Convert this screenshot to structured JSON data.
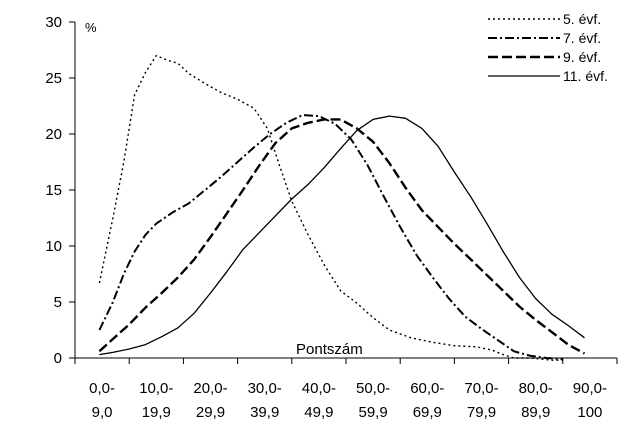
{
  "chart_data": {
    "type": "line",
    "ylabel_unit": "%",
    "xlabel": "Pontszám",
    "ylim": [
      0,
      30
    ],
    "yticks": [
      0,
      5,
      10,
      15,
      20,
      25,
      30
    ],
    "categories": [
      {
        "line1": "0,0-",
        "line2": "9,0"
      },
      {
        "line1": "10,0-",
        "line2": "19,9"
      },
      {
        "line1": "20,0-",
        "line2": "29,9"
      },
      {
        "line1": "30,0-",
        "line2": "39,9"
      },
      {
        "line1": "40,0-",
        "line2": "49,9"
      },
      {
        "line1": "50,0-",
        "line2": "59,9"
      },
      {
        "line1": "60,0-",
        "line2": "69,9"
      },
      {
        "line1": "70,0-",
        "line2": "79,9"
      },
      {
        "line1": "80,0-",
        "line2": "89,9"
      },
      {
        "line1": "90,0-",
        "line2": "100"
      }
    ],
    "x_range": [
      0,
      100
    ],
    "legend_position": "top-right",
    "series": [
      {
        "name": "5. évf.",
        "style": "dotted",
        "points": [
          [
            4.5,
            6.7
          ],
          [
            7,
            12.5
          ],
          [
            9,
            17.5
          ],
          [
            11,
            23.5
          ],
          [
            13,
            25.5
          ],
          [
            15,
            27.0
          ],
          [
            17,
            26.6
          ],
          [
            19,
            26.3
          ],
          [
            21,
            25.4
          ],
          [
            24,
            24.5
          ],
          [
            27,
            23.7
          ],
          [
            30,
            23.1
          ],
          [
            33,
            22.3
          ],
          [
            35.5,
            20.5
          ],
          [
            37.5,
            17.5
          ],
          [
            40,
            14.0
          ],
          [
            43,
            11.0
          ],
          [
            46,
            8.3
          ],
          [
            49,
            6.0
          ],
          [
            52,
            4.9
          ],
          [
            55,
            3.6
          ],
          [
            58,
            2.5
          ],
          [
            62,
            1.8
          ],
          [
            66,
            1.4
          ],
          [
            70,
            1.1
          ],
          [
            74,
            1.0
          ],
          [
            77,
            0.7
          ],
          [
            79,
            0.3
          ],
          [
            81,
            0.0
          ],
          [
            84,
            0.0
          ],
          [
            88,
            -0.2
          ],
          [
            90,
            -0.2
          ]
        ]
      },
      {
        "name": "7. évf.",
        "style": "dash-dot",
        "points": [
          [
            4.5,
            2.5
          ],
          [
            7,
            5.0
          ],
          [
            9,
            7.5
          ],
          [
            11,
            9.5
          ],
          [
            13,
            11.0
          ],
          [
            15,
            12.0
          ],
          [
            18,
            13.0
          ],
          [
            21,
            13.8
          ],
          [
            24,
            15.0
          ],
          [
            27,
            16.2
          ],
          [
            30,
            17.5
          ],
          [
            33,
            18.8
          ],
          [
            36,
            20.0
          ],
          [
            39,
            21.0
          ],
          [
            42,
            21.7
          ],
          [
            45,
            21.6
          ],
          [
            48,
            20.9
          ],
          [
            51,
            19.5
          ],
          [
            54,
            17.2
          ],
          [
            57,
            14.4
          ],
          [
            60,
            11.7
          ],
          [
            63,
            9.2
          ],
          [
            66,
            7.2
          ],
          [
            69,
            5.3
          ],
          [
            72,
            3.7
          ],
          [
            75,
            2.6
          ],
          [
            78,
            1.6
          ],
          [
            81,
            0.6
          ],
          [
            84,
            0.2
          ],
          [
            87,
            0.0
          ],
          [
            90,
            -0.1
          ]
        ]
      },
      {
        "name": "9. évf.",
        "style": "dashed",
        "points": [
          [
            4.5,
            0.6
          ],
          [
            7,
            1.7
          ],
          [
            10,
            3.0
          ],
          [
            13,
            4.5
          ],
          [
            16,
            5.8
          ],
          [
            19,
            7.2
          ],
          [
            22,
            8.8
          ],
          [
            25,
            10.8
          ],
          [
            28,
            12.9
          ],
          [
            31,
            15.0
          ],
          [
            34,
            17.2
          ],
          [
            37,
            19.2
          ],
          [
            40,
            20.5
          ],
          [
            43,
            21.0
          ],
          [
            46,
            21.3
          ],
          [
            49,
            21.3
          ],
          [
            52,
            20.5
          ],
          [
            55,
            19.3
          ],
          [
            58,
            17.4
          ],
          [
            61,
            15.2
          ],
          [
            64,
            13.2
          ],
          [
            67,
            11.7
          ],
          [
            70,
            10.2
          ],
          [
            73,
            8.8
          ],
          [
            76,
            7.4
          ],
          [
            79,
            6.0
          ],
          [
            82,
            4.6
          ],
          [
            85,
            3.4
          ],
          [
            88,
            2.3
          ],
          [
            91,
            1.2
          ],
          [
            94,
            0.4
          ]
        ]
      },
      {
        "name": "11. évf.",
        "style": "solid",
        "points": [
          [
            4.5,
            0.3
          ],
          [
            7,
            0.5
          ],
          [
            10,
            0.8
          ],
          [
            13,
            1.2
          ],
          [
            16,
            1.9
          ],
          [
            19,
            2.7
          ],
          [
            22,
            4.0
          ],
          [
            25,
            5.8
          ],
          [
            28,
            7.7
          ],
          [
            31,
            9.7
          ],
          [
            34,
            11.2
          ],
          [
            37,
            12.7
          ],
          [
            40,
            14.2
          ],
          [
            43,
            15.5
          ],
          [
            46,
            17.0
          ],
          [
            49,
            18.7
          ],
          [
            52,
            20.3
          ],
          [
            55,
            21.3
          ],
          [
            58,
            21.6
          ],
          [
            61,
            21.4
          ],
          [
            64,
            20.5
          ],
          [
            67,
            18.9
          ],
          [
            70,
            16.6
          ],
          [
            73,
            14.4
          ],
          [
            76,
            12.0
          ],
          [
            79,
            9.5
          ],
          [
            82,
            7.2
          ],
          [
            85,
            5.3
          ],
          [
            88,
            3.9
          ],
          [
            91,
            2.9
          ],
          [
            94,
            1.8
          ]
        ]
      }
    ]
  }
}
